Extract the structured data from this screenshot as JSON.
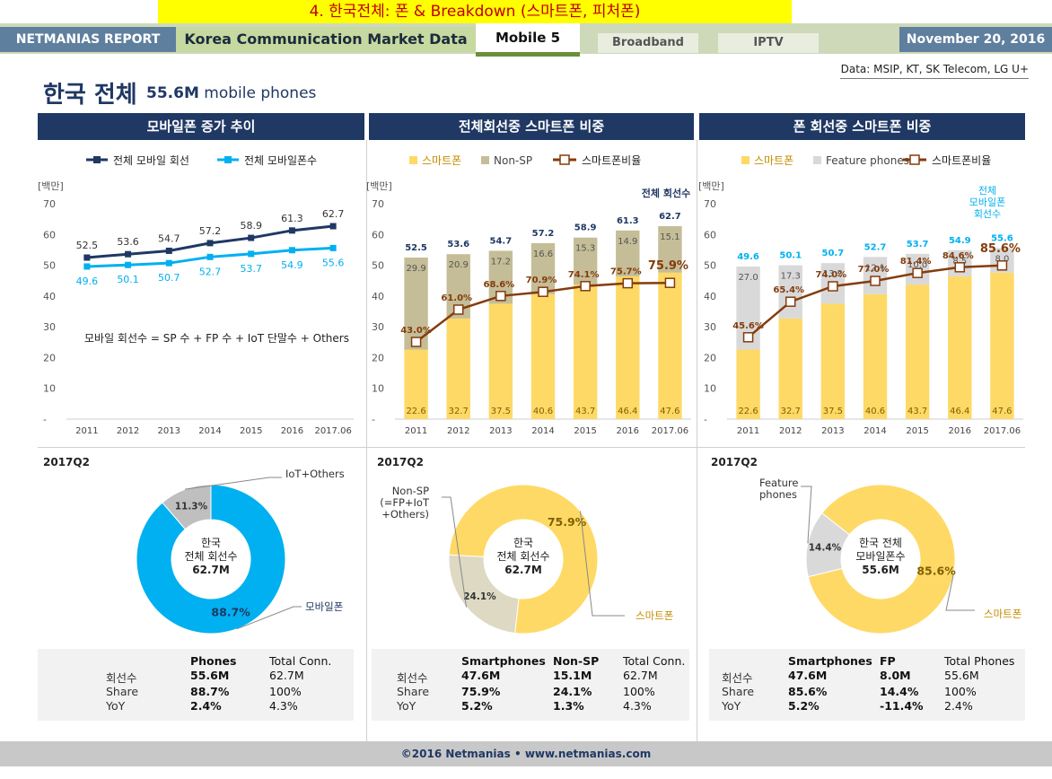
{
  "banner": "4. 한국전체: 폰 & Breakdown (스마트폰, 피처폰)",
  "nav": {
    "report": "NETMANIAS REPORT",
    "section": "Korea Communication Market Data",
    "active_tab": "Mobile 5",
    "tabs": [
      "Broadband",
      "IPTV"
    ],
    "date": "November 20, 2016"
  },
  "source": "Data: MSIP, KT, SK Telecom, LG U+",
  "page_title": "한국 전체",
  "page_subtitle_value": "55.6M",
  "page_subtitle_text": "mobile phones",
  "panels": [
    {
      "header": "모바일폰 증가 추이"
    },
    {
      "header": "전체회선중 스마트폰 비중"
    },
    {
      "header": "폰 회선중 스마트폰 비중"
    }
  ],
  "quarter_label": "2017Q2",
  "colors": {
    "navy": "#1f3864",
    "cyan": "#00b0f0",
    "sp_yellow": "#ffd966",
    "nonsp_khaki": "#c4bd97",
    "fp_gray": "#d9d9d9",
    "ratio_brown": "#843c0c"
  },
  "chart_data": [
    {
      "type": "line",
      "categories": [
        "2011",
        "2012",
        "2013",
        "2014",
        "2015",
        "2016",
        "2017.06"
      ],
      "ylabel": "[백만]",
      "yticks": [
        "-",
        "10",
        "20",
        "30",
        "40",
        "50",
        "60",
        "70"
      ],
      "ylim": [
        0,
        70
      ],
      "legend_position": "top",
      "series": [
        {
          "name": "전체 모바일 회선",
          "color": "#1f3864",
          "values": [
            52.5,
            53.6,
            54.7,
            57.2,
            58.9,
            61.3,
            62.7
          ],
          "labels": [
            "52.5",
            "53.6",
            "54.7",
            "57.2",
            "58.9",
            "61.3",
            "62.7"
          ]
        },
        {
          "name": "전체 모바일폰수",
          "color": "#00b0f0",
          "values": [
            49.6,
            50.1,
            50.7,
            52.7,
            53.7,
            54.9,
            55.6
          ],
          "labels": [
            "49.6",
            "50.1",
            "50.7",
            "52.7",
            "53.7",
            "54.9",
            "55.6"
          ]
        }
      ],
      "annotation": "모바일 회선수 = SP 수 + FP 수 + IoT 단말수 + Others"
    },
    {
      "type": "bar",
      "stacked": true,
      "categories": [
        "2011",
        "2012",
        "2013",
        "2014",
        "2015",
        "2016",
        "2017.06"
      ],
      "ylabel": "[백만]",
      "yticks": [
        "-",
        "10",
        "20",
        "30",
        "40",
        "50",
        "60",
        "70"
      ],
      "ylim": [
        0,
        70
      ],
      "legend_position": "top",
      "series": [
        {
          "name": "스마트폰",
          "color": "#ffd966",
          "values": [
            22.6,
            32.7,
            37.5,
            40.6,
            43.7,
            46.4,
            47.6
          ],
          "labels": [
            "22.6",
            "32.7",
            "37.5",
            "40.6",
            "43.7",
            "46.4",
            "47.6"
          ]
        },
        {
          "name": "Non-SP",
          "color": "#c4bd97",
          "values": [
            29.9,
            20.9,
            17.2,
            16.6,
            15.3,
            14.9,
            15.1
          ],
          "labels": [
            "29.9",
            "20.9",
            "17.2",
            "16.6",
            "15.3",
            "14.9",
            "15.1"
          ]
        }
      ],
      "totals": [
        "52.5",
        "53.6",
        "54.7",
        "57.2",
        "58.9",
        "61.3",
        "62.7"
      ],
      "totals_label": "전체 회선수",
      "ratio": {
        "name": "스마트폰비율",
        "values": [
          43.0,
          61.0,
          68.6,
          70.9,
          74.1,
          75.7,
          75.9
        ],
        "labels": [
          "43.0%",
          "61.0%",
          "68.6%",
          "70.9%",
          "74.1%",
          "75.7%",
          "75.9%"
        ],
        "ylim": [
          0,
          120
        ]
      }
    },
    {
      "type": "bar",
      "stacked": true,
      "categories": [
        "2011",
        "2012",
        "2013",
        "2014",
        "2015",
        "2016",
        "2017.06"
      ],
      "ylabel": "[백만]",
      "yticks": [
        "-",
        "10",
        "20",
        "30",
        "40",
        "50",
        "60",
        "70"
      ],
      "ylim": [
        0,
        70
      ],
      "legend_position": "top",
      "series": [
        {
          "name": "스마트폰",
          "color": "#ffd966",
          "values": [
            22.6,
            32.7,
            37.5,
            40.6,
            43.7,
            46.4,
            47.6
          ],
          "labels": [
            "22.6",
            "32.7",
            "37.5",
            "40.6",
            "43.7",
            "46.4",
            "47.6"
          ]
        },
        {
          "name": "Feature phones",
          "color": "#d9d9d9",
          "values": [
            27.0,
            17.3,
            13.2,
            12.1,
            10.0,
            8.5,
            8.0
          ],
          "labels": [
            "27.0",
            "17.3",
            "13.2",
            "12.1",
            "10.0",
            "8.5",
            "8.0"
          ]
        }
      ],
      "totals": [
        "49.6",
        "50.1",
        "50.7",
        "52.7",
        "53.7",
        "54.9",
        "55.6"
      ],
      "totals_label": [
        "전체",
        "모바일폰",
        "회선수"
      ],
      "ratio": {
        "name": "스마트폰비율",
        "values": [
          45.6,
          65.4,
          74.0,
          77.0,
          81.4,
          84.6,
          85.6
        ],
        "labels": [
          "45.6%",
          "65.4%",
          "74.0%",
          "77.0%",
          "81.4%",
          "84.6%",
          "85.6%"
        ],
        "ylim": [
          0,
          120
        ]
      }
    },
    {
      "type": "pie",
      "donut": true,
      "title": "2017Q2",
      "slices": [
        {
          "name": "모바일폰",
          "value": 88.7,
          "label": "88.7%",
          "color": "#00b0f0"
        },
        {
          "name": "IoT+Others",
          "value": 11.3,
          "label": "11.3%",
          "color": "#bfbfbf"
        }
      ],
      "center": [
        "한국",
        "전체 회선수",
        "62.7M"
      ]
    },
    {
      "type": "pie",
      "donut": true,
      "title": "2017Q2",
      "slices": [
        {
          "name": "스마트폰",
          "value": 75.9,
          "label": "75.9%",
          "color": "#ffd966"
        },
        {
          "name": "Non-SP (=FP+IoT +Others)",
          "value": 24.1,
          "label": "24.1%",
          "color": "#ddd9c3"
        }
      ],
      "slice_callout_lines": [
        "Non-SP",
        "(=FP+IoT",
        "+Others)"
      ],
      "center": [
        "한국",
        "전체 회선수",
        "62.7M"
      ]
    },
    {
      "type": "pie",
      "donut": true,
      "title": "2017Q2",
      "slices": [
        {
          "name": "스마트폰",
          "value": 85.6,
          "label": "85.6%",
          "color": "#ffd966"
        },
        {
          "name": "Feature phones",
          "value": 14.4,
          "label": "14.4%",
          "color": "#d9d9d9"
        }
      ],
      "slice_callout_lines": [
        "Feature",
        "phones"
      ],
      "center": [
        "한국 전체",
        "모바일폰수",
        "55.6M"
      ]
    }
  ],
  "tables": [
    {
      "headers": [
        "Phones",
        "Total Conn."
      ],
      "rows": [
        {
          "label": "회선수",
          "values": [
            "55.6M",
            "62.7M"
          ]
        },
        {
          "label": "Share",
          "values": [
            "88.7%",
            "100%"
          ]
        },
        {
          "label": "YoY",
          "values": [
            "2.4%",
            "4.3%"
          ]
        }
      ]
    },
    {
      "headers": [
        "Smartphones",
        "Non-SP",
        "Total Conn."
      ],
      "rows": [
        {
          "label": "회선수",
          "values": [
            "47.6M",
            "15.1M",
            "62.7M"
          ]
        },
        {
          "label": "Share",
          "values": [
            "75.9%",
            "24.1%",
            "100%"
          ]
        },
        {
          "label": "YoY",
          "values": [
            "5.2%",
            "1.3%",
            "4.3%"
          ]
        }
      ]
    },
    {
      "headers": [
        "Smartphones",
        "FP",
        "Total Phones"
      ],
      "rows": [
        {
          "label": "회선수",
          "values": [
            "47.6M",
            "8.0M",
            "55.6M"
          ]
        },
        {
          "label": "Share",
          "values": [
            "85.6%",
            "14.4%",
            "100%"
          ]
        },
        {
          "label": "YoY",
          "values": [
            "5.2%",
            "-11.4%",
            "2.4%"
          ]
        }
      ]
    }
  ],
  "footer": "©2016 Netmanias • www.netmanias.com"
}
